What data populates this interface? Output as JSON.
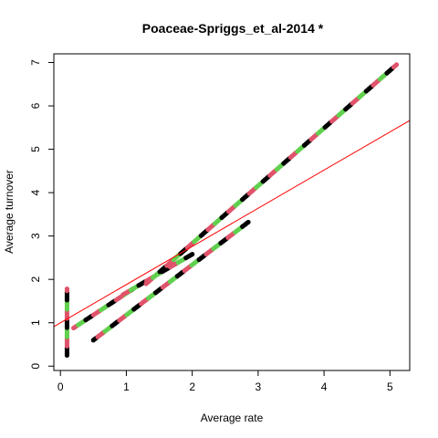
{
  "chart_data": {
    "type": "scatter",
    "title": "Poaceae-Spriggs_et_al-2014 *",
    "xlabel": "Average rate",
    "ylabel": "Average turnover",
    "xlim": [
      -0.1,
      5.3
    ],
    "ylim": [
      -0.1,
      7.2
    ],
    "x_ticks": [
      "0",
      "1",
      "2",
      "3",
      "4",
      "5"
    ],
    "y_ticks": [
      "0",
      "1",
      "2",
      "3",
      "4",
      "5",
      "6",
      "7"
    ],
    "grid": false,
    "legend": "none",
    "colors": {
      "black": "#000000",
      "red": "#DF536B",
      "green": "#61D04F",
      "fit_line": "#FF0000"
    },
    "series": [
      {
        "segments": [
          {
            "x": [
              0.1,
              0.1
            ],
            "y": [
              0.25,
              1.78
            ]
          },
          {
            "x": [
              0.2,
              1.1
            ],
            "y": [
              0.88,
              1.78
            ]
          },
          {
            "x": [
              0.5,
              2.85
            ],
            "y": [
              0.6,
              3.32
            ]
          },
          {
            "x": [
              0.95,
              2.0
            ],
            "y": [
              1.65,
              2.58
            ]
          },
          {
            "x": [
              1.3,
              5.1
            ],
            "y": [
              1.9,
              6.95
            ]
          }
        ]
      }
    ],
    "fit_line": {
      "slope": 0.88,
      "intercept": 1.0
    }
  }
}
